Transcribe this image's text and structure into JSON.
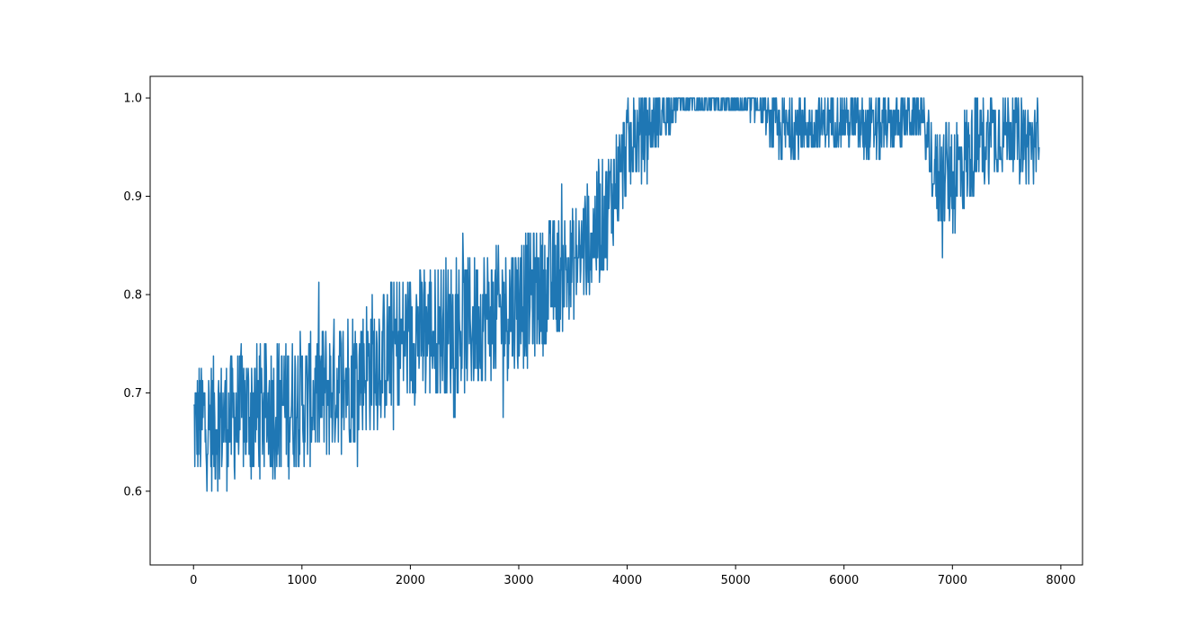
{
  "chart_data": {
    "type": "line",
    "title": "",
    "xlabel": "",
    "ylabel": "",
    "xlim": [
      -400,
      8200
    ],
    "ylim": [
      0.525,
      1.022
    ],
    "x_ticks": [
      0,
      1000,
      2000,
      3000,
      4000,
      5000,
      6000,
      7000,
      8000
    ],
    "y_ticks": [
      0.6,
      0.7,
      0.8,
      0.9,
      1.0
    ],
    "x_tick_labels": [
      "0",
      "1000",
      "2000",
      "3000",
      "4000",
      "5000",
      "6000",
      "7000",
      "8000"
    ],
    "y_tick_labels": [
      "0.6",
      "0.7",
      "0.8",
      "0.9",
      "1.0"
    ],
    "grid": false,
    "series": [
      {
        "color": "#1f77b4",
        "note_points": "noisy series sampled every step from 0 to ~7800; envelope anchors below (x, mean, noise half-width)",
        "x_start": 0,
        "x_end": 7800,
        "anchors": [
          [
            0,
            0.67,
            0.06
          ],
          [
            200,
            0.67,
            0.07
          ],
          [
            500,
            0.68,
            0.07
          ],
          [
            1000,
            0.69,
            0.07
          ],
          [
            1500,
            0.72,
            0.07
          ],
          [
            2000,
            0.76,
            0.07
          ],
          [
            2500,
            0.77,
            0.07
          ],
          [
            3000,
            0.79,
            0.07
          ],
          [
            3500,
            0.83,
            0.06
          ],
          [
            3800,
            0.88,
            0.06
          ],
          [
            4000,
            0.95,
            0.05
          ],
          [
            4300,
            0.98,
            0.03
          ],
          [
            4500,
            0.995,
            0.01
          ],
          [
            5200,
            0.99,
            0.01
          ],
          [
            5400,
            0.965,
            0.035
          ],
          [
            6000,
            0.98,
            0.025
          ],
          [
            6200,
            0.965,
            0.035
          ],
          [
            6700,
            0.985,
            0.02
          ],
          [
            6850,
            0.92,
            0.05
          ],
          [
            7000,
            0.92,
            0.06
          ],
          [
            7200,
            0.95,
            0.05
          ],
          [
            7500,
            0.97,
            0.04
          ],
          [
            7800,
            0.95,
            0.05
          ]
        ]
      }
    ]
  }
}
